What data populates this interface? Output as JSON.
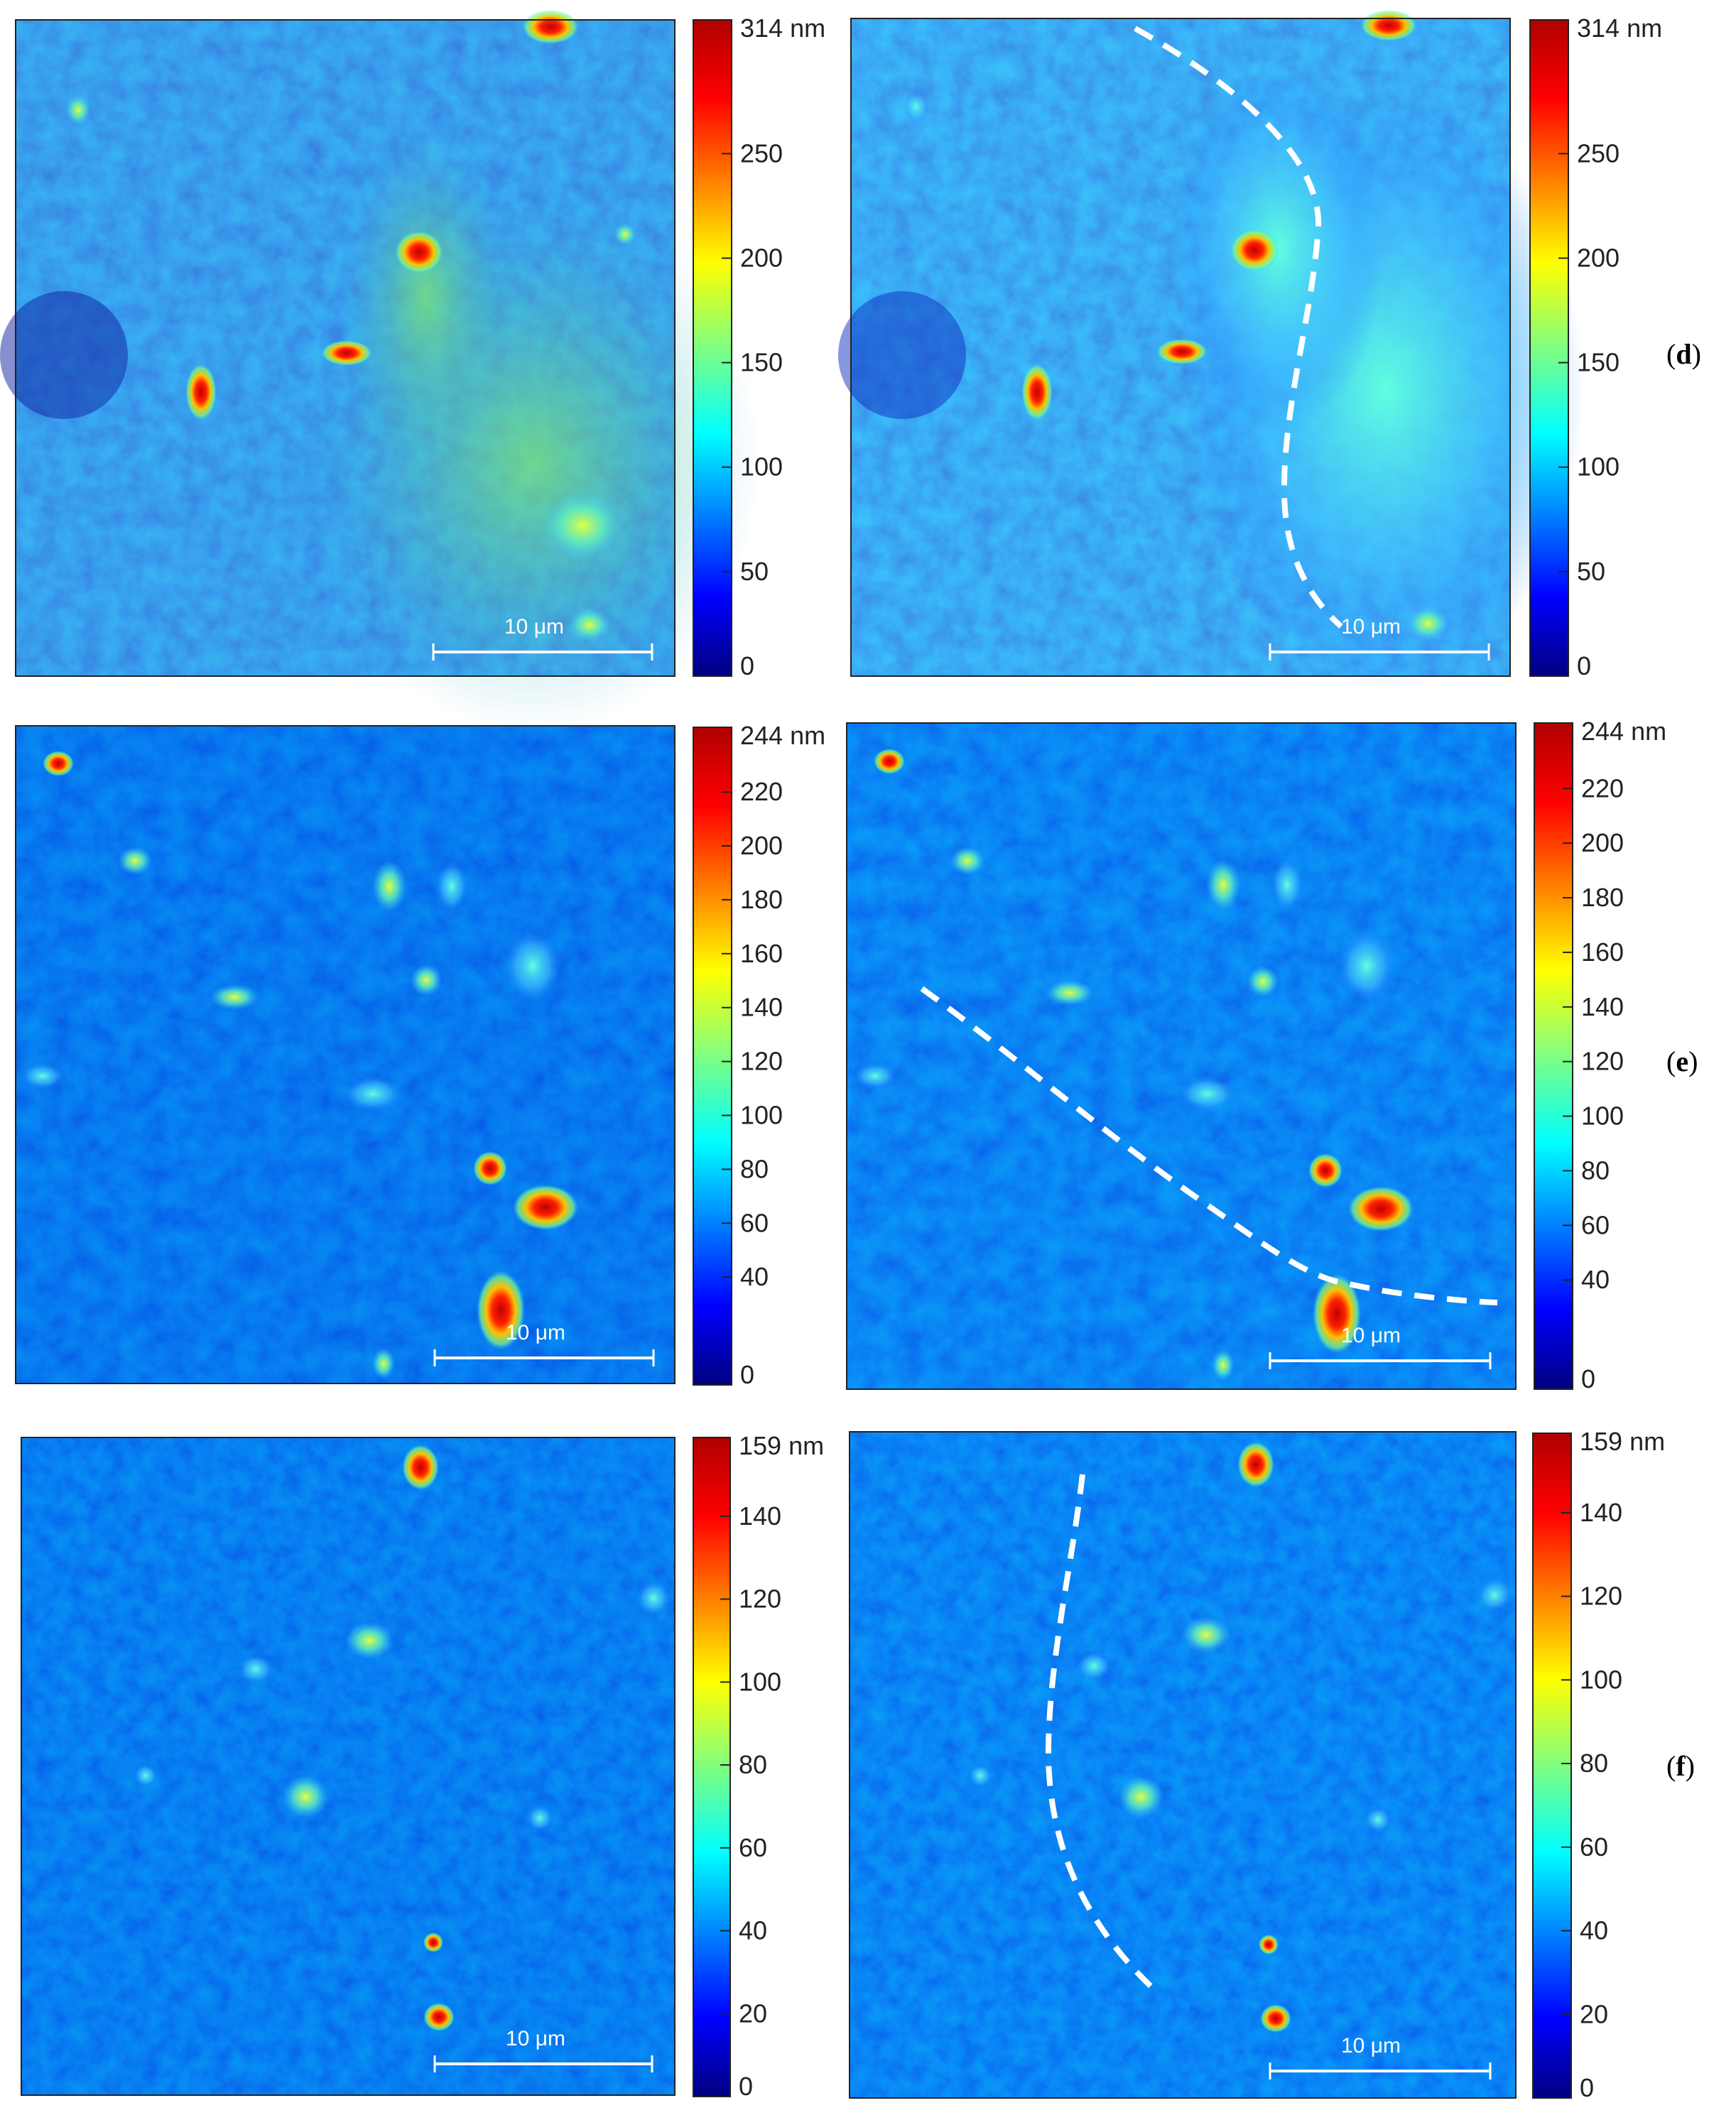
{
  "rows": [
    {
      "label_open": "(",
      "label_letter": "d",
      "label_close": ")",
      "colorbar_ticks": [
        "314 nm",
        "250",
        "200",
        "150",
        "100",
        "50",
        "0"
      ],
      "colorbar_values": [
        314,
        250,
        200,
        150,
        100,
        50,
        0
      ],
      "scale_bar_text": "10 μm",
      "background_tone": "mixed blue to green",
      "dashed_boundary": "curved line on right image"
    },
    {
      "label_open": "(",
      "label_letter": "e",
      "label_close": ")",
      "colorbar_ticks": [
        "244 nm",
        "220",
        "200",
        "180",
        "160",
        "140",
        "120",
        "100",
        "80",
        "60",
        "40",
        "0"
      ],
      "colorbar_values": [
        244,
        220,
        200,
        180,
        160,
        140,
        120,
        100,
        80,
        60,
        40,
        0
      ],
      "scale_bar_text": "10 μm",
      "background_tone": "blue",
      "dashed_boundary": "diagonal line on right image"
    },
    {
      "label_open": "(",
      "label_letter": "f",
      "label_close": ")",
      "colorbar_ticks": [
        "159 nm",
        "140",
        "120",
        "100",
        "80",
        "60",
        "40",
        "20",
        "0"
      ],
      "colorbar_values": [
        159,
        140,
        120,
        100,
        80,
        60,
        40,
        20,
        0
      ],
      "scale_bar_text": "10 μm",
      "background_tone": "blue",
      "dashed_boundary": "curved line on right image"
    }
  ],
  "colors": {
    "colormap": [
      "#00007f",
      "#0000ff",
      "#0080ff",
      "#00ffff",
      "#80ff80",
      "#ffff00",
      "#ff8000",
      "#ff0000",
      "#7f0000"
    ],
    "dash": "#ffffff",
    "scale_bar": "#ffffff"
  }
}
